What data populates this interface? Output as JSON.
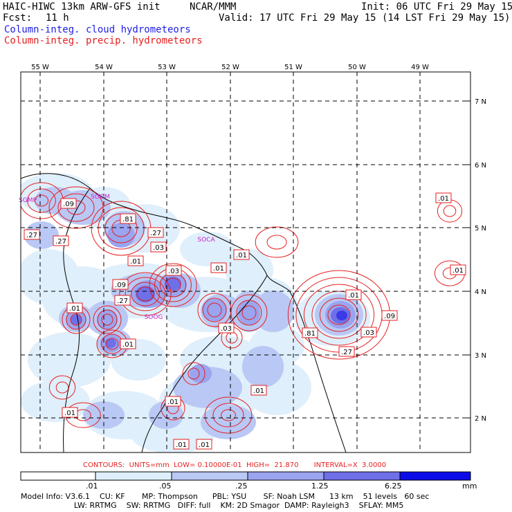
{
  "header": {
    "title": "HAIC-HIWC 13km ARW-GFS init",
    "org": "NCAR/MMM",
    "init": "Init: 06 UTC Fri 29 May 15",
    "fcst_label": "Fcst:",
    "fcst_value": "11 h",
    "valid": "Valid: 17 UTC Fri 29 May 15 (14 LST Fri 29 May 15)",
    "line_cloud": "Column-integ. cloud hydrometeors",
    "line_precip": "Column-integ. precip. hydrometeors"
  },
  "colors": {
    "cloud": "#1e1ee6",
    "precip": "#e61e1e",
    "label_magenta": "#cc22cc",
    "fill_levels": [
      "#ffffff",
      "#dfeffb",
      "#b9c8f4",
      "#9aa4ef",
      "#6f6fe8",
      "#3a3ae6",
      "#0c0ce8"
    ]
  },
  "axes": {
    "lon_labels": [
      "55 W",
      "54 W",
      "53 W",
      "52 W",
      "51 W",
      "50 W",
      "49 W"
    ],
    "lat_labels": [
      "7 N",
      "6 N",
      "5 N",
      "4 N",
      "3 N",
      "2 N"
    ]
  },
  "stations": [
    "SGMP",
    "SOOM",
    "SOCA",
    "SOOG"
  ],
  "contour_labels": [
    ".09",
    ".27",
    ".27",
    ".81",
    ".27",
    ".03",
    ".01",
    ".01",
    ".09",
    ".03",
    ".01",
    ".27",
    ".01",
    ".01",
    ".03",
    ".01",
    ".81",
    ".09",
    ".03",
    ".27",
    ".01",
    ".01",
    ".01",
    ".01",
    ".01",
    ".01",
    ".01"
  ],
  "contours_info": {
    "text": "CONTOURS:  UNITS=mm  LOW= 0.10000E-01  HIGH=  21.870       INTERVAL=X  3.0000"
  },
  "colorbar": {
    "ticks": [
      ".01",
      ".05",
      ".25",
      "1.25",
      "6.25"
    ],
    "unit": "mm"
  },
  "footer": {
    "line1": "Model Info: V3.6.1    CU: KF       MP: Thompson      PBL: YSU       SF: Noah LSM      13 km    51 levels   60 sec",
    "line2": "                      LW: RRTMG    SW: RRTMG   DIFF: full    KM: 2D Smagor  DAMP: Rayleigh3    SFLAY: MM5"
  }
}
